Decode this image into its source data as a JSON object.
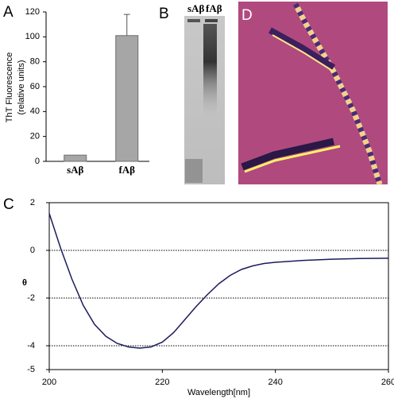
{
  "chart_data": [
    {
      "type": "bar",
      "panel": "A",
      "ylabel": [
        "ThT Fluorescence",
        "(relative units)"
      ],
      "categories": [
        "sAβ",
        "fAβ"
      ],
      "values": [
        5,
        101
      ],
      "errors": [
        null,
        17
      ],
      "color": "#a6a6a6",
      "ylim": [
        0,
        120
      ],
      "yticks": [
        0,
        20,
        40,
        60,
        80,
        100,
        120
      ]
    },
    {
      "type": "line",
      "panel": "C",
      "ylabel": "θ",
      "xlabel": "Wavelength[nm]",
      "x": [
        200,
        202,
        204,
        206,
        208,
        210,
        212,
        214,
        216,
        218,
        220,
        222,
        224,
        226,
        228,
        230,
        232,
        234,
        236,
        238,
        240,
        245,
        250,
        255,
        260
      ],
      "series": [
        {
          "color": "#1c1c5c",
          "values": [
            1.55,
            0.1,
            -1.2,
            -2.3,
            -3.1,
            -3.6,
            -3.9,
            -4.05,
            -4.1,
            -4.05,
            -3.85,
            -3.45,
            -2.9,
            -2.35,
            -1.85,
            -1.4,
            -1.05,
            -0.8,
            -0.65,
            -0.55,
            -0.5,
            -0.42,
            -0.37,
            -0.34,
            -0.33
          ]
        }
      ],
      "xlim": [
        200,
        260
      ],
      "xticks": [
        200,
        220,
        240,
        260
      ],
      "ylim": [
        -5,
        2
      ],
      "yticks": [
        2,
        0,
        -2,
        -4,
        -5
      ],
      "grid": [
        0,
        -2,
        -4
      ]
    }
  ],
  "panels": {
    "B": {
      "label": "B",
      "lanes": [
        "sAβ",
        "fAβ"
      ]
    },
    "D": {
      "label": "D"
    }
  }
}
